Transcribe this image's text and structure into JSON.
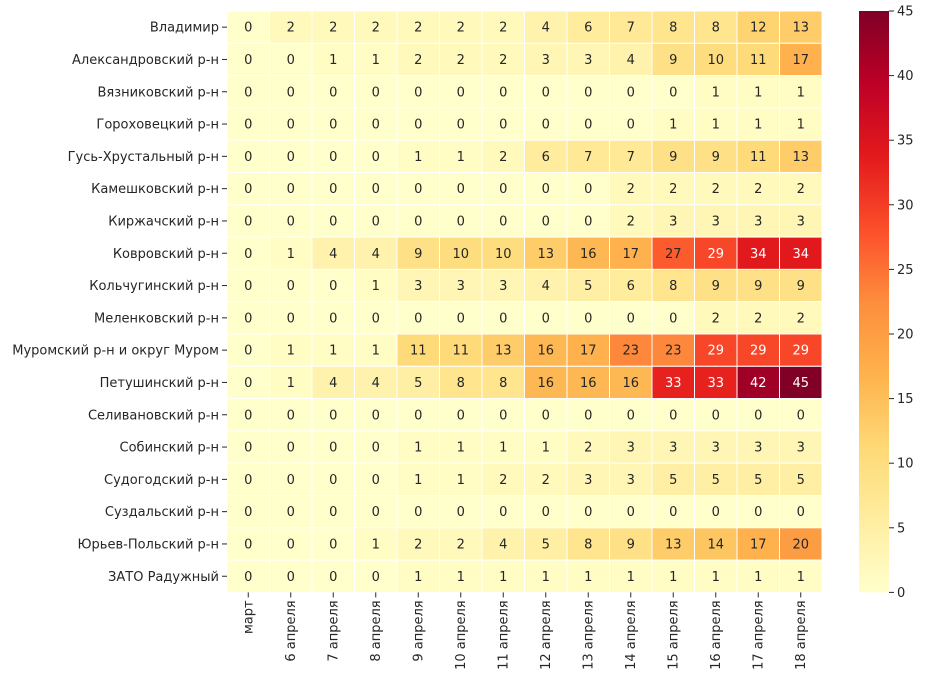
{
  "chart_data": {
    "type": "heatmap",
    "title": "",
    "xlabel": "",
    "ylabel": "",
    "colormap": "YlOrRd",
    "vmin": 0,
    "vmax": 45,
    "grid_lines_color": "#ffffff",
    "colorbar_ticks": [
      0,
      5,
      10,
      15,
      20,
      25,
      30,
      35,
      40,
      45
    ],
    "x": [
      "март",
      "6 апреля",
      "7 апреля",
      "8 апреля",
      "9 апреля",
      "10 апреля",
      "11 апреля",
      "12 апреля",
      "13 апреля",
      "14 апреля",
      "15 апреля",
      "16 апреля",
      "17 апреля",
      "18 апреля"
    ],
    "y": [
      "Владимир",
      "Александровский р-н",
      "Вязниковский р-н",
      "Гороховецкий р-н",
      "Гусь-Хрустальный р-н",
      "Камешковский р-н",
      "Киржачский р-н",
      "Ковровский р-н",
      "Кольчугинский р-н",
      "Меленковский р-н",
      "Муромский р-н и округ Муром",
      "Петушинский р-н",
      "Селивановский р-н",
      "Собинский р-н",
      "Судогодский р-н",
      "Суздальский р-н",
      "Юрьев-Польский р-н",
      "ЗАТО Радужный"
    ],
    "values": [
      [
        0,
        2,
        2,
        2,
        2,
        2,
        2,
        4,
        6,
        7,
        8,
        8,
        12,
        13
      ],
      [
        0,
        0,
        1,
        1,
        2,
        2,
        2,
        3,
        3,
        4,
        9,
        10,
        11,
        17
      ],
      [
        0,
        0,
        0,
        0,
        0,
        0,
        0,
        0,
        0,
        0,
        0,
        1,
        1,
        1
      ],
      [
        0,
        0,
        0,
        0,
        0,
        0,
        0,
        0,
        0,
        0,
        1,
        1,
        1,
        1
      ],
      [
        0,
        0,
        0,
        0,
        1,
        1,
        2,
        6,
        7,
        7,
        9,
        9,
        11,
        13
      ],
      [
        0,
        0,
        0,
        0,
        0,
        0,
        0,
        0,
        0,
        2,
        2,
        2,
        2,
        2
      ],
      [
        0,
        0,
        0,
        0,
        0,
        0,
        0,
        0,
        0,
        2,
        3,
        3,
        3,
        3
      ],
      [
        0,
        1,
        4,
        4,
        9,
        10,
        10,
        13,
        16,
        17,
        27,
        29,
        34,
        34
      ],
      [
        0,
        0,
        0,
        1,
        3,
        3,
        3,
        4,
        5,
        6,
        8,
        9,
        9,
        9
      ],
      [
        0,
        0,
        0,
        0,
        0,
        0,
        0,
        0,
        0,
        0,
        0,
        2,
        2,
        2
      ],
      [
        0,
        1,
        1,
        1,
        11,
        11,
        13,
        16,
        17,
        23,
        23,
        29,
        29,
        29
      ],
      [
        0,
        1,
        4,
        4,
        5,
        8,
        8,
        16,
        16,
        16,
        33,
        33,
        42,
        45
      ],
      [
        0,
        0,
        0,
        0,
        0,
        0,
        0,
        0,
        0,
        0,
        0,
        0,
        0,
        0
      ],
      [
        0,
        0,
        0,
        0,
        1,
        1,
        1,
        1,
        2,
        3,
        3,
        3,
        3,
        3
      ],
      [
        0,
        0,
        0,
        0,
        1,
        1,
        2,
        2,
        3,
        3,
        5,
        5,
        5,
        5
      ],
      [
        0,
        0,
        0,
        0,
        0,
        0,
        0,
        0,
        0,
        0,
        0,
        0,
        0,
        0
      ],
      [
        0,
        0,
        0,
        1,
        2,
        2,
        4,
        5,
        8,
        9,
        13,
        14,
        17,
        20
      ],
      [
        0,
        0,
        0,
        0,
        1,
        1,
        1,
        1,
        1,
        1,
        1,
        1,
        1,
        1
      ]
    ]
  }
}
